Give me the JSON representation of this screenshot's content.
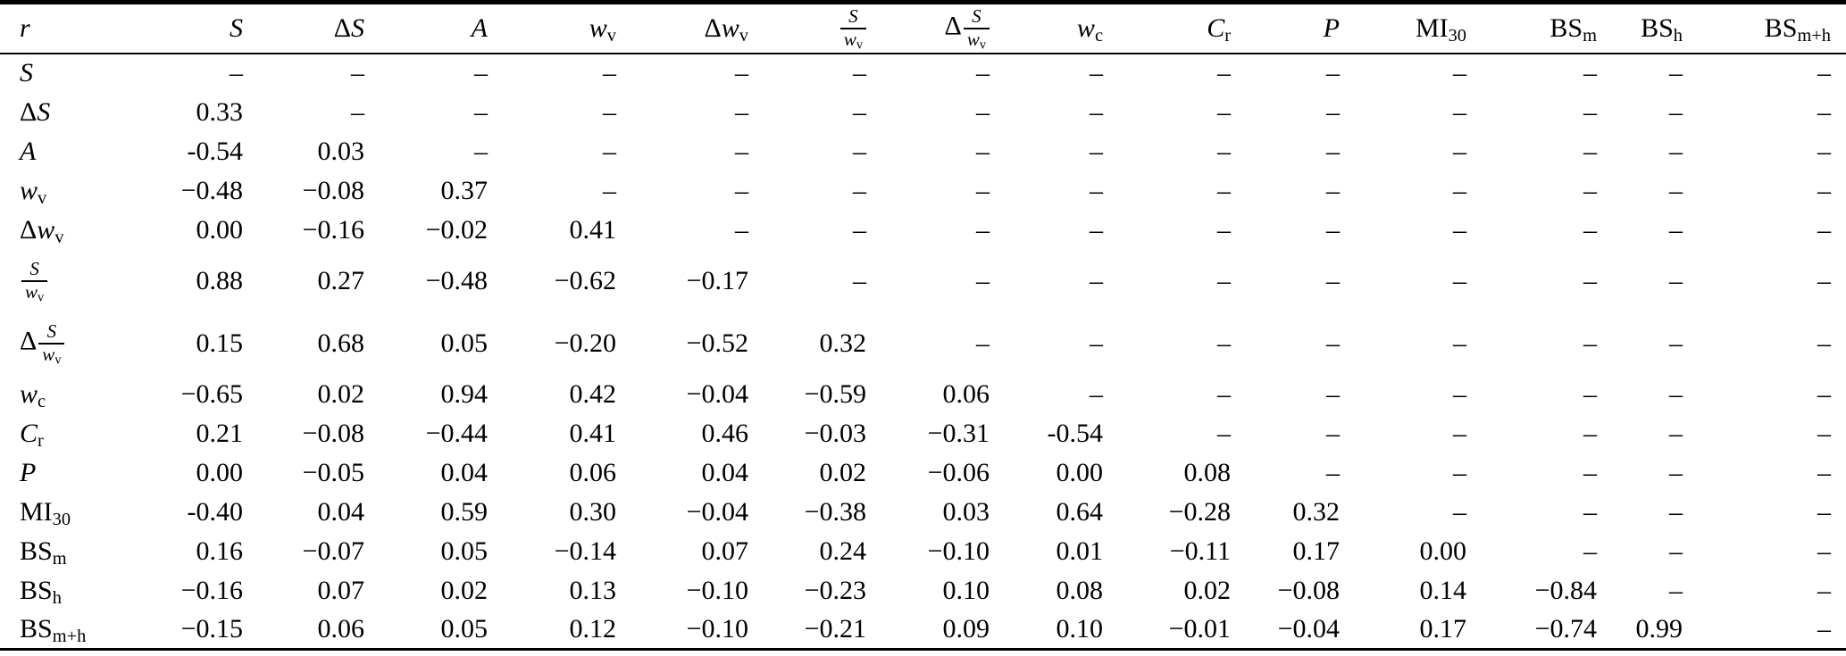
{
  "table": {
    "corner_header": [
      {
        "i": "r"
      }
    ],
    "columns": [
      [
        {
          "i": "S"
        }
      ],
      [
        {
          "r": "Δ"
        },
        {
          "i": "S"
        }
      ],
      [
        {
          "i": "A"
        }
      ],
      [
        {
          "i": "w"
        },
        {
          "sub": "v"
        }
      ],
      [
        {
          "r": "Δ"
        },
        {
          "i": "w"
        },
        {
          "sub": "v"
        }
      ],
      [
        {
          "frac": {
            "num": [
              {
                "i": "S"
              }
            ],
            "den": [
              {
                "i": "w"
              },
              {
                "sub": "v"
              }
            ]
          }
        }
      ],
      [
        {
          "r": "Δ"
        },
        {
          "frac": {
            "num": [
              {
                "i": "S"
              }
            ],
            "den": [
              {
                "i": "w"
              },
              {
                "sub": "v"
              }
            ]
          }
        }
      ],
      [
        {
          "i": "w"
        },
        {
          "sub": "c"
        }
      ],
      [
        {
          "i": "C"
        },
        {
          "sub": "r"
        }
      ],
      [
        {
          "i": "P"
        }
      ],
      [
        {
          "r": "MI"
        },
        {
          "sub": "30"
        }
      ],
      [
        {
          "r": "BS"
        },
        {
          "sub": "m"
        }
      ],
      [
        {
          "r": "BS"
        },
        {
          "sub": "h"
        }
      ],
      [
        {
          "r": "BS"
        },
        {
          "sub": "m+h"
        }
      ]
    ],
    "rows": [
      {
        "label": [
          {
            "i": "S"
          }
        ],
        "values": [
          "–",
          "–",
          "–",
          "–",
          "–",
          "–",
          "–",
          "–",
          "–",
          "–",
          "–",
          "–",
          "–",
          "–"
        ]
      },
      {
        "label": [
          {
            "r": "Δ"
          },
          {
            "i": "S"
          }
        ],
        "values": [
          "0.33",
          "–",
          "–",
          "–",
          "–",
          "–",
          "–",
          "–",
          "–",
          "–",
          "–",
          "–",
          "–",
          "–"
        ]
      },
      {
        "label": [
          {
            "i": "A"
          }
        ],
        "values": [
          "-0.54",
          "0.03",
          "–",
          "–",
          "–",
          "–",
          "–",
          "–",
          "–",
          "–",
          "–",
          "–",
          "–",
          "–"
        ]
      },
      {
        "label": [
          {
            "i": "w"
          },
          {
            "sub": "v"
          }
        ],
        "values": [
          "−0.48",
          "−0.08",
          "0.37",
          "–",
          "–",
          "–",
          "–",
          "–",
          "–",
          "–",
          "–",
          "–",
          "–",
          "–"
        ]
      },
      {
        "label": [
          {
            "r": "Δ"
          },
          {
            "i": "w"
          },
          {
            "sub": "v"
          }
        ],
        "values": [
          "0.00",
          "−0.16",
          "−0.02",
          "0.41",
          "–",
          "–",
          "–",
          "–",
          "–",
          "–",
          "–",
          "–",
          "–",
          "–"
        ]
      },
      {
        "label": [
          {
            "frac": {
              "num": [
                {
                  "i": "S"
                }
              ],
              "den": [
                {
                  "i": "w"
                },
                {
                  "sub": "v"
                }
              ]
            }
          }
        ],
        "values": [
          "0.88",
          "0.27",
          "−0.48",
          "−0.62",
          "−0.17",
          "–",
          "–",
          "–",
          "–",
          "–",
          "–",
          "–",
          "–",
          "–"
        ]
      },
      {
        "label": [
          {
            "r": "Δ"
          },
          {
            "frac": {
              "num": [
                {
                  "i": "S"
                }
              ],
              "den": [
                {
                  "i": "w"
                },
                {
                  "sub": "v"
                }
              ]
            }
          }
        ],
        "values": [
          "0.15",
          "0.68",
          "0.05",
          "−0.20",
          "−0.52",
          "0.32",
          "–",
          "–",
          "–",
          "–",
          "–",
          "–",
          "–",
          "–"
        ]
      },
      {
        "label": [
          {
            "i": "w"
          },
          {
            "sub": "c"
          }
        ],
        "values": [
          "−0.65",
          "0.02",
          "0.94",
          "0.42",
          "−0.04",
          "−0.59",
          "0.06",
          "–",
          "–",
          "–",
          "–",
          "–",
          "–",
          "–"
        ]
      },
      {
        "label": [
          {
            "i": "C"
          },
          {
            "sub": "r"
          }
        ],
        "values": [
          "0.21",
          "−0.08",
          "−0.44",
          "0.41",
          "0.46",
          "−0.03",
          "−0.31",
          "-0.54",
          "–",
          "–",
          "–",
          "–",
          "–",
          "–"
        ]
      },
      {
        "label": [
          {
            "i": "P"
          }
        ],
        "values": [
          "0.00",
          "−0.05",
          "0.04",
          "0.06",
          "0.04",
          "0.02",
          "−0.06",
          "0.00",
          "0.08",
          "–",
          "–",
          "–",
          "–",
          "–"
        ]
      },
      {
        "label": [
          {
            "r": "MI"
          },
          {
            "sub": "30"
          }
        ],
        "values": [
          "-0.40",
          "0.04",
          "0.59",
          "0.30",
          "−0.04",
          "−0.38",
          "0.03",
          "0.64",
          "−0.28",
          "0.32",
          "–",
          "–",
          "–",
          "–"
        ]
      },
      {
        "label": [
          {
            "r": "BS"
          },
          {
            "sub": "m"
          }
        ],
        "values": [
          "0.16",
          "−0.07",
          "0.05",
          "−0.14",
          "0.07",
          "0.24",
          "−0.10",
          "0.01",
          "−0.11",
          "0.17",
          "0.00",
          "–",
          "–",
          "–"
        ]
      },
      {
        "label": [
          {
            "r": "BS"
          },
          {
            "sub": "h"
          }
        ],
        "values": [
          "−0.16",
          "0.07",
          "0.02",
          "0.13",
          "−0.10",
          "−0.23",
          "0.10",
          "0.08",
          "0.02",
          "−0.08",
          "0.14",
          "−0.84",
          "–",
          "–"
        ]
      },
      {
        "label": [
          {
            "r": "BS"
          },
          {
            "sub": "m+h"
          }
        ],
        "values": [
          "−0.15",
          "0.06",
          "0.05",
          "0.12",
          "−0.10",
          "−0.21",
          "0.09",
          "0.10",
          "−0.01",
          "−0.04",
          "0.17",
          "−0.74",
          "0.99",
          "–"
        ]
      }
    ]
  }
}
